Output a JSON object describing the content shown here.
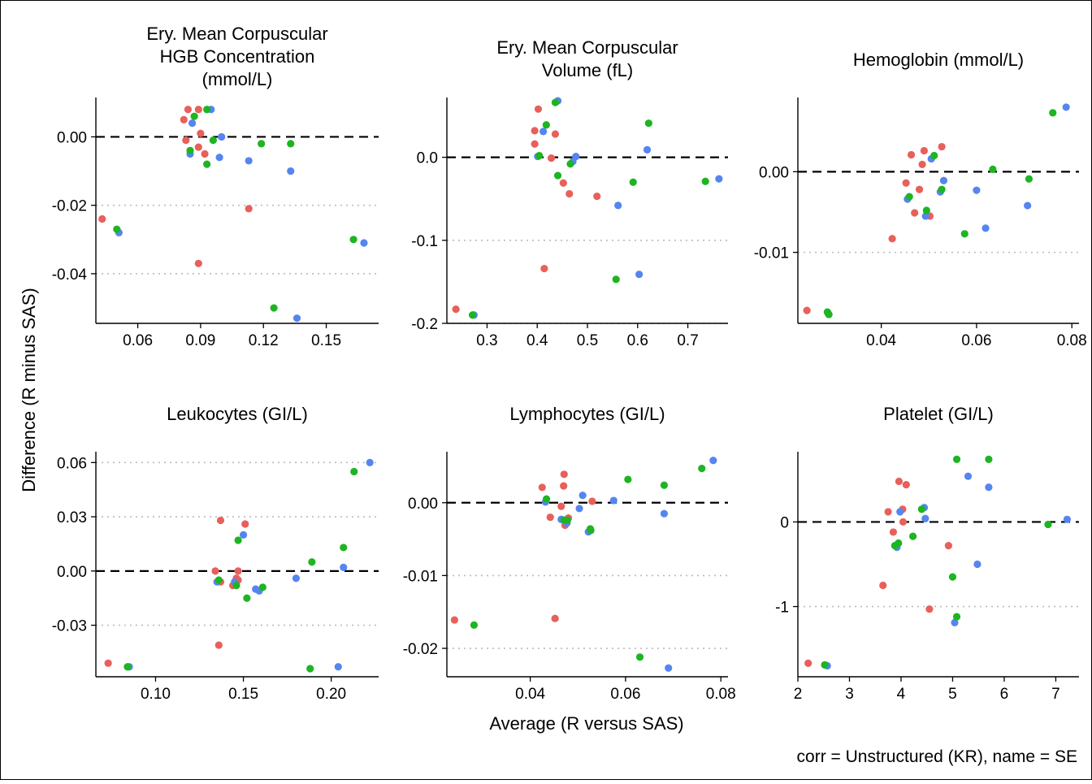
{
  "figure": {
    "ylabel": "Difference (R minus SAS)",
    "xlabel": "Average (R versus SAS)",
    "caption": "corr = Unstructured (KR), name = SE"
  },
  "colors": {
    "red": "#E8605A",
    "green": "#1DB521",
    "blue": "#5585F0",
    "zero_line": "#000000",
    "ref_line": "#BBBBBB"
  },
  "chart_data": [
    {
      "type": "scatter",
      "title": [
        "Ery. Mean Corpuscular",
        "HGB Concentration",
        "(mmol/L)"
      ],
      "xlim": [
        0.04,
        0.175
      ],
      "ylim": [
        -0.0545,
        0.0115
      ],
      "x_ticks": [
        0.06,
        0.09,
        0.12,
        0.15
      ],
      "x_tick_labels": [
        "0.06",
        "0.09",
        "0.12",
        "0.15"
      ],
      "y_ticks": [
        0.0,
        -0.02,
        -0.04
      ],
      "y_tick_labels": [
        "0.00",
        "-0.02",
        "-0.04"
      ],
      "zero_line": 0,
      "ref_lines": [
        -0.02,
        -0.04
      ],
      "points": [
        {
          "x": 0.043,
          "y": -0.024,
          "c": "red"
        },
        {
          "x": 0.082,
          "y": 0.005,
          "c": "red"
        },
        {
          "x": 0.084,
          "y": 0.008,
          "c": "red"
        },
        {
          "x": 0.089,
          "y": 0.008,
          "c": "red"
        },
        {
          "x": 0.09,
          "y": 0.001,
          "c": "red"
        },
        {
          "x": 0.083,
          "y": -0.001,
          "c": "red"
        },
        {
          "x": 0.089,
          "y": -0.003,
          "c": "red"
        },
        {
          "x": 0.092,
          "y": -0.005,
          "c": "red"
        },
        {
          "x": 0.113,
          "y": -0.021,
          "c": "red"
        },
        {
          "x": 0.089,
          "y": -0.037,
          "c": "red"
        },
        {
          "x": 0.086,
          "y": 0.004,
          "c": "blue"
        },
        {
          "x": 0.085,
          "y": -0.005,
          "c": "blue"
        },
        {
          "x": 0.095,
          "y": 0.008,
          "c": "blue"
        },
        {
          "x": 0.1,
          "y": 0.0,
          "c": "blue"
        },
        {
          "x": 0.099,
          "y": -0.006,
          "c": "blue"
        },
        {
          "x": 0.113,
          "y": -0.007,
          "c": "blue"
        },
        {
          "x": 0.133,
          "y": -0.01,
          "c": "blue"
        },
        {
          "x": 0.051,
          "y": -0.028,
          "c": "blue"
        },
        {
          "x": 0.168,
          "y": -0.031,
          "c": "blue"
        },
        {
          "x": 0.136,
          "y": -0.053,
          "c": "blue"
        },
        {
          "x": 0.087,
          "y": 0.006,
          "c": "green"
        },
        {
          "x": 0.093,
          "y": 0.008,
          "c": "green"
        },
        {
          "x": 0.096,
          "y": -0.001,
          "c": "green"
        },
        {
          "x": 0.085,
          "y": -0.004,
          "c": "green"
        },
        {
          "x": 0.093,
          "y": -0.008,
          "c": "green"
        },
        {
          "x": 0.119,
          "y": -0.002,
          "c": "green"
        },
        {
          "x": 0.133,
          "y": -0.002,
          "c": "green"
        },
        {
          "x": 0.05,
          "y": -0.027,
          "c": "green"
        },
        {
          "x": 0.163,
          "y": -0.03,
          "c": "green"
        },
        {
          "x": 0.125,
          "y": -0.05,
          "c": "green"
        }
      ]
    },
    {
      "type": "scatter",
      "title": [
        "Ery. Mean Corpuscular",
        "Volume (fL)"
      ],
      "xlim": [
        0.22,
        0.78
      ],
      "ylim": [
        -0.2,
        0.072
      ],
      "x_ticks": [
        0.3,
        0.4,
        0.5,
        0.6,
        0.7
      ],
      "x_tick_labels": [
        "0.3",
        "0.4",
        "0.5",
        "0.6",
        "0.7"
      ],
      "y_ticks": [
        0.0,
        -0.1,
        -0.2
      ],
      "y_tick_labels": [
        "0.0",
        "-0.1",
        "-0.2"
      ],
      "zero_line": 0,
      "ref_lines": [
        -0.1,
        -0.2
      ],
      "points": [
        {
          "x": 0.238,
          "y": -0.183,
          "c": "red"
        },
        {
          "x": 0.402,
          "y": 0.058,
          "c": "red"
        },
        {
          "x": 0.395,
          "y": 0.032,
          "c": "red"
        },
        {
          "x": 0.395,
          "y": 0.016,
          "c": "red"
        },
        {
          "x": 0.436,
          "y": 0.028,
          "c": "red"
        },
        {
          "x": 0.428,
          "y": -0.001,
          "c": "red"
        },
        {
          "x": 0.452,
          "y": -0.031,
          "c": "red"
        },
        {
          "x": 0.464,
          "y": -0.044,
          "c": "red"
        },
        {
          "x": 0.519,
          "y": -0.047,
          "c": "red"
        },
        {
          "x": 0.414,
          "y": -0.134,
          "c": "red"
        },
        {
          "x": 0.441,
          "y": 0.068,
          "c": "blue"
        },
        {
          "x": 0.412,
          "y": 0.031,
          "c": "blue"
        },
        {
          "x": 0.401,
          "y": 0.001,
          "c": "blue"
        },
        {
          "x": 0.477,
          "y": 0.001,
          "c": "blue"
        },
        {
          "x": 0.471,
          "y": -0.005,
          "c": "blue"
        },
        {
          "x": 0.619,
          "y": 0.009,
          "c": "blue"
        },
        {
          "x": 0.762,
          "y": -0.026,
          "c": "blue"
        },
        {
          "x": 0.561,
          "y": -0.058,
          "c": "blue"
        },
        {
          "x": 0.603,
          "y": -0.141,
          "c": "blue"
        },
        {
          "x": 0.274,
          "y": -0.19,
          "c": "blue"
        },
        {
          "x": 0.436,
          "y": 0.066,
          "c": "green"
        },
        {
          "x": 0.418,
          "y": 0.039,
          "c": "green"
        },
        {
          "x": 0.622,
          "y": 0.041,
          "c": "green"
        },
        {
          "x": 0.404,
          "y": 0.002,
          "c": "green"
        },
        {
          "x": 0.466,
          "y": -0.008,
          "c": "green"
        },
        {
          "x": 0.441,
          "y": -0.022,
          "c": "green"
        },
        {
          "x": 0.591,
          "y": -0.03,
          "c": "green"
        },
        {
          "x": 0.735,
          "y": -0.029,
          "c": "green"
        },
        {
          "x": 0.557,
          "y": -0.147,
          "c": "green"
        },
        {
          "x": 0.271,
          "y": -0.19,
          "c": "green"
        }
      ]
    },
    {
      "type": "scatter",
      "title": [
        "Hemoglobin (mmol/L)"
      ],
      "xlim": [
        0.0225,
        0.0815
      ],
      "ylim": [
        -0.0188,
        0.0092
      ],
      "x_ticks": [
        0.04,
        0.06,
        0.08
      ],
      "x_tick_labels": [
        "0.04",
        "0.06",
        "0.08"
      ],
      "y_ticks": [
        0.0,
        -0.01
      ],
      "y_tick_labels": [
        "0.00",
        "-0.01"
      ],
      "zero_line": 0,
      "ref_lines": [
        -0.01
      ],
      "points": [
        {
          "x": 0.0244,
          "y": -0.0172,
          "c": "red"
        },
        {
          "x": 0.0423,
          "y": -0.0083,
          "c": "red"
        },
        {
          "x": 0.0463,
          "y": 0.0021,
          "c": "red"
        },
        {
          "x": 0.049,
          "y": 0.0026,
          "c": "red"
        },
        {
          "x": 0.0527,
          "y": 0.0031,
          "c": "red"
        },
        {
          "x": 0.0486,
          "y": 0.0009,
          "c": "red"
        },
        {
          "x": 0.0452,
          "y": -0.0014,
          "c": "red"
        },
        {
          "x": 0.048,
          "y": -0.0022,
          "c": "red"
        },
        {
          "x": 0.047,
          "y": -0.0051,
          "c": "red"
        },
        {
          "x": 0.0502,
          "y": -0.0055,
          "c": "red"
        },
        {
          "x": 0.0788,
          "y": 0.008,
          "c": "blue"
        },
        {
          "x": 0.0505,
          "y": 0.0016,
          "c": "blue"
        },
        {
          "x": 0.0531,
          "y": -0.0011,
          "c": "blue"
        },
        {
          "x": 0.0524,
          "y": -0.0025,
          "c": "blue"
        },
        {
          "x": 0.0455,
          "y": -0.0034,
          "c": "blue"
        },
        {
          "x": 0.06,
          "y": -0.0023,
          "c": "blue"
        },
        {
          "x": 0.0707,
          "y": -0.0042,
          "c": "blue"
        },
        {
          "x": 0.0493,
          "y": -0.0055,
          "c": "blue"
        },
        {
          "x": 0.0619,
          "y": -0.007,
          "c": "blue"
        },
        {
          "x": 0.0289,
          "y": -0.0176,
          "c": "blue"
        },
        {
          "x": 0.076,
          "y": 0.0073,
          "c": "green"
        },
        {
          "x": 0.0511,
          "y": 0.002,
          "c": "green"
        },
        {
          "x": 0.0634,
          "y": 0.0003,
          "c": "green"
        },
        {
          "x": 0.071,
          "y": -0.0009,
          "c": "green"
        },
        {
          "x": 0.0527,
          "y": -0.0022,
          "c": "green"
        },
        {
          "x": 0.0459,
          "y": -0.0031,
          "c": "green"
        },
        {
          "x": 0.0495,
          "y": -0.0048,
          "c": "green"
        },
        {
          "x": 0.0575,
          "y": -0.0077,
          "c": "green"
        },
        {
          "x": 0.0287,
          "y": -0.0174,
          "c": "green"
        },
        {
          "x": 0.029,
          "y": -0.0177,
          "c": "green"
        }
      ]
    },
    {
      "type": "scatter",
      "title": [
        "Leukocytes (GI/L)"
      ],
      "xlim": [
        0.066,
        0.227
      ],
      "ylim": [
        -0.0585,
        0.066
      ],
      "x_ticks": [
        0.1,
        0.15,
        0.2
      ],
      "x_tick_labels": [
        "0.10",
        "0.15",
        "0.20"
      ],
      "y_ticks": [
        0.06,
        0.03,
        0.0,
        -0.03
      ],
      "y_tick_labels": [
        "0.06",
        "0.03",
        "0.00",
        "-0.03"
      ],
      "zero_line": 0,
      "ref_lines": [
        0.06,
        0.03,
        -0.03
      ],
      "points": [
        {
          "x": 0.073,
          "y": -0.051,
          "c": "red"
        },
        {
          "x": 0.137,
          "y": 0.028,
          "c": "red"
        },
        {
          "x": 0.151,
          "y": 0.026,
          "c": "red"
        },
        {
          "x": 0.134,
          "y": 0.0,
          "c": "red"
        },
        {
          "x": 0.147,
          "y": 0.0,
          "c": "red"
        },
        {
          "x": 0.137,
          "y": -0.006,
          "c": "red"
        },
        {
          "x": 0.146,
          "y": -0.004,
          "c": "red"
        },
        {
          "x": 0.144,
          "y": -0.008,
          "c": "red"
        },
        {
          "x": 0.147,
          "y": -0.005,
          "c": "red"
        },
        {
          "x": 0.136,
          "y": -0.041,
          "c": "red"
        },
        {
          "x": 0.222,
          "y": 0.06,
          "c": "blue"
        },
        {
          "x": 0.15,
          "y": 0.02,
          "c": "blue"
        },
        {
          "x": 0.207,
          "y": 0.002,
          "c": "blue"
        },
        {
          "x": 0.135,
          "y": -0.006,
          "c": "blue"
        },
        {
          "x": 0.145,
          "y": -0.006,
          "c": "blue"
        },
        {
          "x": 0.157,
          "y": -0.01,
          "c": "blue"
        },
        {
          "x": 0.159,
          "y": -0.011,
          "c": "blue"
        },
        {
          "x": 0.18,
          "y": -0.004,
          "c": "blue"
        },
        {
          "x": 0.085,
          "y": -0.053,
          "c": "blue"
        },
        {
          "x": 0.204,
          "y": -0.053,
          "c": "blue"
        },
        {
          "x": 0.213,
          "y": 0.055,
          "c": "green"
        },
        {
          "x": 0.147,
          "y": 0.017,
          "c": "green"
        },
        {
          "x": 0.207,
          "y": 0.013,
          "c": "green"
        },
        {
          "x": 0.189,
          "y": 0.005,
          "c": "green"
        },
        {
          "x": 0.136,
          "y": -0.005,
          "c": "green"
        },
        {
          "x": 0.161,
          "y": -0.009,
          "c": "green"
        },
        {
          "x": 0.146,
          "y": -0.008,
          "c": "green"
        },
        {
          "x": 0.152,
          "y": -0.015,
          "c": "green"
        },
        {
          "x": 0.084,
          "y": -0.053,
          "c": "green"
        },
        {
          "x": 0.188,
          "y": -0.054,
          "c": "green"
        }
      ]
    },
    {
      "type": "scatter",
      "title": [
        "Lymphocytes (GI/L)"
      ],
      "xlim": [
        0.0225,
        0.0815
      ],
      "ylim": [
        -0.0239,
        0.007
      ],
      "x_ticks": [
        0.04,
        0.06,
        0.08
      ],
      "x_tick_labels": [
        "0.04",
        "0.06",
        "0.08"
      ],
      "y_ticks": [
        0.0,
        -0.01,
        -0.02
      ],
      "y_tick_labels": [
        "0.00",
        "-0.01",
        "-0.02"
      ],
      "zero_line": 0,
      "ref_lines": [
        -0.01,
        -0.02
      ],
      "points": [
        {
          "x": 0.0241,
          "y": -0.0161,
          "c": "red"
        },
        {
          "x": 0.0471,
          "y": 0.0039,
          "c": "red"
        },
        {
          "x": 0.047,
          "y": 0.0023,
          "c": "red"
        },
        {
          "x": 0.0425,
          "y": 0.0021,
          "c": "red"
        },
        {
          "x": 0.0465,
          "y": -0.0005,
          "c": "red"
        },
        {
          "x": 0.0442,
          "y": -0.002,
          "c": "red"
        },
        {
          "x": 0.048,
          "y": -0.0021,
          "c": "red"
        },
        {
          "x": 0.0473,
          "y": -0.0031,
          "c": "red"
        },
        {
          "x": 0.053,
          "y": 0.0002,
          "c": "red"
        },
        {
          "x": 0.0452,
          "y": -0.0159,
          "c": "red"
        },
        {
          "x": 0.0784,
          "y": 0.0058,
          "c": "blue"
        },
        {
          "x": 0.051,
          "y": 0.001,
          "c": "blue"
        },
        {
          "x": 0.0575,
          "y": 0.0003,
          "c": "blue"
        },
        {
          "x": 0.0503,
          "y": -0.0008,
          "c": "blue"
        },
        {
          "x": 0.0432,
          "y": 0.0001,
          "c": "blue"
        },
        {
          "x": 0.0465,
          "y": -0.0023,
          "c": "blue"
        },
        {
          "x": 0.0522,
          "y": -0.004,
          "c": "blue"
        },
        {
          "x": 0.0681,
          "y": -0.0015,
          "c": "blue"
        },
        {
          "x": 0.0477,
          "y": -0.0028,
          "c": "blue"
        },
        {
          "x": 0.069,
          "y": -0.0227,
          "c": "blue"
        },
        {
          "x": 0.076,
          "y": 0.0047,
          "c": "green"
        },
        {
          "x": 0.0605,
          "y": 0.0032,
          "c": "green"
        },
        {
          "x": 0.0681,
          "y": 0.0024,
          "c": "green"
        },
        {
          "x": 0.0434,
          "y": 0.0005,
          "c": "green"
        },
        {
          "x": 0.0471,
          "y": -0.0024,
          "c": "green"
        },
        {
          "x": 0.0478,
          "y": -0.0024,
          "c": "green"
        },
        {
          "x": 0.0526,
          "y": -0.0036,
          "c": "green"
        },
        {
          "x": 0.0282,
          "y": -0.0168,
          "c": "green"
        },
        {
          "x": 0.063,
          "y": -0.0212,
          "c": "green"
        },
        {
          "x": 0.0527,
          "y": -0.0038,
          "c": "green"
        }
      ]
    },
    {
      "type": "scatter",
      "title": [
        "Platelet (GI/L)"
      ],
      "xlim": [
        2.0,
        7.45
      ],
      "ylim": [
        -1.83,
        0.83
      ],
      "x_ticks": [
        2,
        3,
        4,
        5,
        6,
        7
      ],
      "x_tick_labels": [
        "2",
        "3",
        "4",
        "5",
        "6",
        "7"
      ],
      "y_ticks": [
        0,
        -1
      ],
      "y_tick_labels": [
        "0",
        "-1"
      ],
      "zero_line": 0,
      "ref_lines": [
        -1
      ],
      "points": [
        {
          "x": 2.2,
          "y": -1.67,
          "c": "red"
        },
        {
          "x": 3.96,
          "y": 0.48,
          "c": "red"
        },
        {
          "x": 4.1,
          "y": 0.44,
          "c": "red"
        },
        {
          "x": 3.75,
          "y": 0.12,
          "c": "red"
        },
        {
          "x": 4.03,
          "y": 0.15,
          "c": "red"
        },
        {
          "x": 4.04,
          "y": 0.0,
          "c": "red"
        },
        {
          "x": 3.85,
          "y": -0.12,
          "c": "red"
        },
        {
          "x": 4.92,
          "y": -0.28,
          "c": "red"
        },
        {
          "x": 3.65,
          "y": -0.75,
          "c": "red"
        },
        {
          "x": 4.55,
          "y": -1.03,
          "c": "red"
        },
        {
          "x": 5.3,
          "y": 0.54,
          "c": "blue"
        },
        {
          "x": 5.7,
          "y": 0.41,
          "c": "blue"
        },
        {
          "x": 4.45,
          "y": 0.17,
          "c": "blue"
        },
        {
          "x": 3.98,
          "y": 0.12,
          "c": "blue"
        },
        {
          "x": 4.47,
          "y": 0.04,
          "c": "blue"
        },
        {
          "x": 7.22,
          "y": 0.03,
          "c": "blue"
        },
        {
          "x": 3.92,
          "y": -0.3,
          "c": "blue"
        },
        {
          "x": 5.48,
          "y": -0.5,
          "c": "blue"
        },
        {
          "x": 5.04,
          "y": -1.19,
          "c": "blue"
        },
        {
          "x": 2.57,
          "y": -1.7,
          "c": "blue"
        },
        {
          "x": 5.08,
          "y": 0.74,
          "c": "green"
        },
        {
          "x": 5.7,
          "y": 0.74,
          "c": "green"
        },
        {
          "x": 4.4,
          "y": 0.15,
          "c": "green"
        },
        {
          "x": 6.85,
          "y": -0.03,
          "c": "green"
        },
        {
          "x": 4.23,
          "y": -0.17,
          "c": "green"
        },
        {
          "x": 3.88,
          "y": -0.28,
          "c": "green"
        },
        {
          "x": 5.0,
          "y": -0.65,
          "c": "green"
        },
        {
          "x": 5.08,
          "y": -1.12,
          "c": "green"
        },
        {
          "x": 2.52,
          "y": -1.69,
          "c": "green"
        },
        {
          "x": 3.95,
          "y": -0.25,
          "c": "green"
        }
      ]
    }
  ]
}
